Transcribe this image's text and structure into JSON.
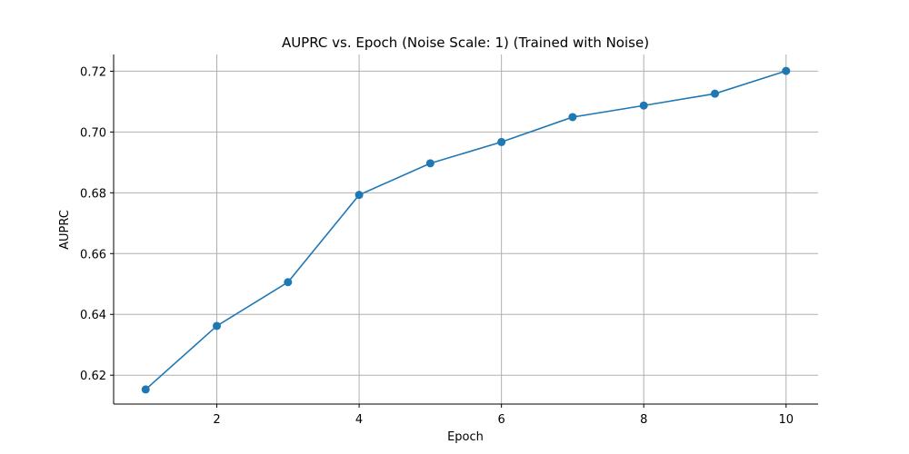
{
  "chart_data": {
    "type": "line",
    "title": "AUPRC vs. Epoch (Noise Scale: 1) (Trained with Noise)",
    "xlabel": "Epoch",
    "ylabel": "AUPRC",
    "xlim": [
      0.55,
      10.45
    ],
    "ylim": [
      0.6105,
      0.7255
    ],
    "x_ticks": [
      2,
      4,
      6,
      8,
      10
    ],
    "x_tick_labels": [
      "2",
      "4",
      "6",
      "8",
      "10"
    ],
    "y_ticks": [
      0.62,
      0.64,
      0.66,
      0.68,
      0.7,
      0.72
    ],
    "y_tick_labels": [
      "0.62",
      "0.64",
      "0.66",
      "0.68",
      "0.70",
      "0.72"
    ],
    "grid": true,
    "spines": "left-bottom",
    "series": [
      {
        "color": "#1f77b4",
        "marker": "circle",
        "x": [
          1,
          2,
          3,
          4,
          5,
          6,
          7,
          8,
          9,
          10
        ],
        "y": [
          0.6153,
          0.6362,
          0.6506,
          0.6793,
          0.6897,
          0.6967,
          0.7049,
          0.7087,
          0.7126,
          0.7201
        ]
      }
    ]
  }
}
